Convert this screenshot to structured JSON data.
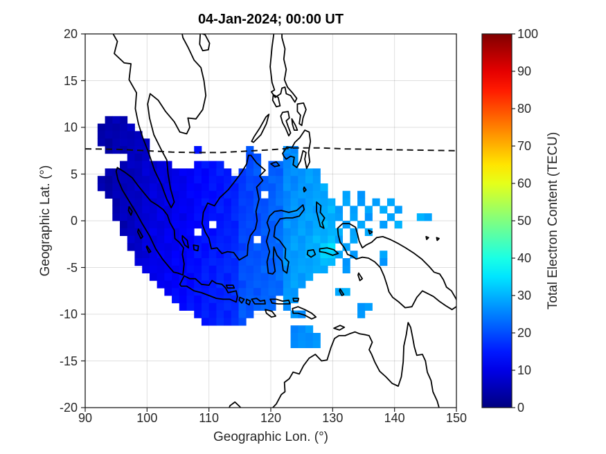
{
  "chart_data": {
    "type": "heatmap",
    "title": "04-Jan-2024; 00:00 UT",
    "xlabel": "Geographic Lon. (°)",
    "ylabel": "Geographic Lat. (°)",
    "xlim": [
      90,
      150
    ],
    "ylim": [
      -20,
      20
    ],
    "x_ticks": [
      90,
      100,
      110,
      120,
      130,
      140,
      150
    ],
    "y_ticks": [
      20,
      15,
      10,
      5,
      0,
      -5,
      -10,
      -15,
      -20
    ],
    "grid": true,
    "value_units": "TECU",
    "colorbar": {
      "label": "Total Electron Content (TECU)",
      "min": 0,
      "max": 100,
      "ticks": [
        0,
        10,
        20,
        30,
        40,
        50,
        60,
        70,
        80,
        90,
        100
      ],
      "colormap": "jet"
    },
    "overlays": {
      "coastlines_shown": true,
      "dip_equator_dashed": [
        [
          90,
          7.7
        ],
        [
          95,
          7.65
        ],
        [
          100,
          7.5
        ],
        [
          104,
          7.35
        ],
        [
          108,
          7.3
        ],
        [
          112,
          7.3
        ],
        [
          116,
          7.45
        ],
        [
          120,
          7.6
        ],
        [
          124,
          7.8
        ],
        [
          128,
          7.8
        ],
        [
          132,
          7.7
        ],
        [
          136,
          7.65
        ],
        [
          140,
          7.6
        ],
        [
          145,
          7.55
        ],
        [
          150,
          7.5
        ]
      ]
    },
    "tec_grid": {
      "comment": "TEC map cells; each char is one cell: '.'=no data, base36 char = TECU value (0-35). Grid starts at lon_start/lat_start (top-left), steps dlon east per char, dlat south per row.",
      "lon_start": 92.0,
      "dlon": 1.2,
      "lat_start": 11.2,
      "dlat": 0.8,
      "rows": [
        ".455...........................................",
        "44556..........................................",
        "445566.........................................",
        "4455667........................................",
        ".455667......f......k....qq....................",
        "....667.............kk...qr....................",
        "...5678899...deef...kl.lmqr....................",
        ".45566889aabcddeff.jkl.lmqqrss.................",
        "4455668899abcddeffgijklmnqqrss.................",
        "445667899aabcddeefgijklmnqqrsst................",
        ".45667899abbcddeefgijk.mnqrrsst..t.s...........",
        "..5667899abbcdeeffgijklmnqrrsstt.t.s.t.s.......",
        "..566789aabbcdeeffgjjklmnqrrsstus.t.s.t.s......",
        "..566799aabbcdeeffgjjklmnqrssttus.t.s..t...tt..",
        "...56799aabccde.ffgjjklmnrrsstuu.t.s..t.t......",
        "...6679aabbcc.eeffgjkklmnrrsstuut.s.t..........",
        "....779aabbcdeeffggjk.lmnrsstuuvt.s............",
        "....779aabbcdeeffggjkllmnrsstuxy.s.............",
        ".....79abbccdeeffghkkllmnrsstuxyt.s...s........",
        ".....8aabbccdeffgghkkllmnrssttuv.s....s........",
        "......aabbccdeffgghkllmmnrssttu..s.............",
        ".......bbccddeffgghkllmmnrsst..................",
        "........bccddeffgghkllmmnrss...................",
        ".........cddeeffgghlllmmnrs.....tt.............",
        "..........ddeeffgghllmmn.rs....................",
        "...........deeffgghllmmn.r.........ss..........",
        ".............effgghll.....rr.......s...........",
        "..............ffgghl...........................",
        "..........................qqr..................",
        "..........................qqrr.................",
        "..........................qqrr.................",
        "..............................................."
      ]
    }
  }
}
